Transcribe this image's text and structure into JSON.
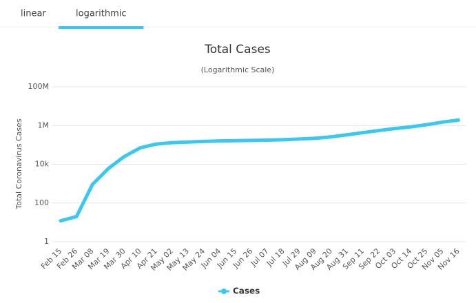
{
  "tabs": [
    "linear",
    "logarithmic"
  ],
  "active_tab": 1,
  "chart_data": {
    "type": "line",
    "title": "Total Cases",
    "subtitle": "(Logarithmic Scale)",
    "y_label": "Total Coronavirus Cases",
    "log_scale": true,
    "grid": true,
    "categories": [
      "Feb 15",
      "Feb 26",
      "Mar 08",
      "Mar 19",
      "Mar 30",
      "Apr 10",
      "Apr 21",
      "May 02",
      "May 13",
      "May 24",
      "Jun 04",
      "Jun 15",
      "Jun 26",
      "Jul 07",
      "Jul 18",
      "Jul 29",
      "Aug 09",
      "Aug 20",
      "Aug 31",
      "Sep 11",
      "Sep 22",
      "Oct 03",
      "Oct 14",
      "Oct 25",
      "Nov 05",
      "Nov 16"
    ],
    "series": [
      {
        "name": "Cases",
        "color": "#3ac8f0",
        "values": [
          12,
          20,
          900,
          6000,
          25000,
          70000,
          110000,
          130000,
          140000,
          150000,
          160000,
          165000,
          170000,
          175000,
          185000,
          200000,
          220000,
          260000,
          330000,
          430000,
          550000,
          700000,
          850000,
          1100000,
          1500000,
          1900000
        ]
      }
    ],
    "ylim": [
      1,
      100000000
    ],
    "yticks": [
      1,
      100,
      {
        "value": 10000,
        "label": "10k"
      },
      {
        "value": 1000000,
        "label": "1M"
      },
      {
        "value": 100000000,
        "label": "100M"
      }
    ]
  }
}
